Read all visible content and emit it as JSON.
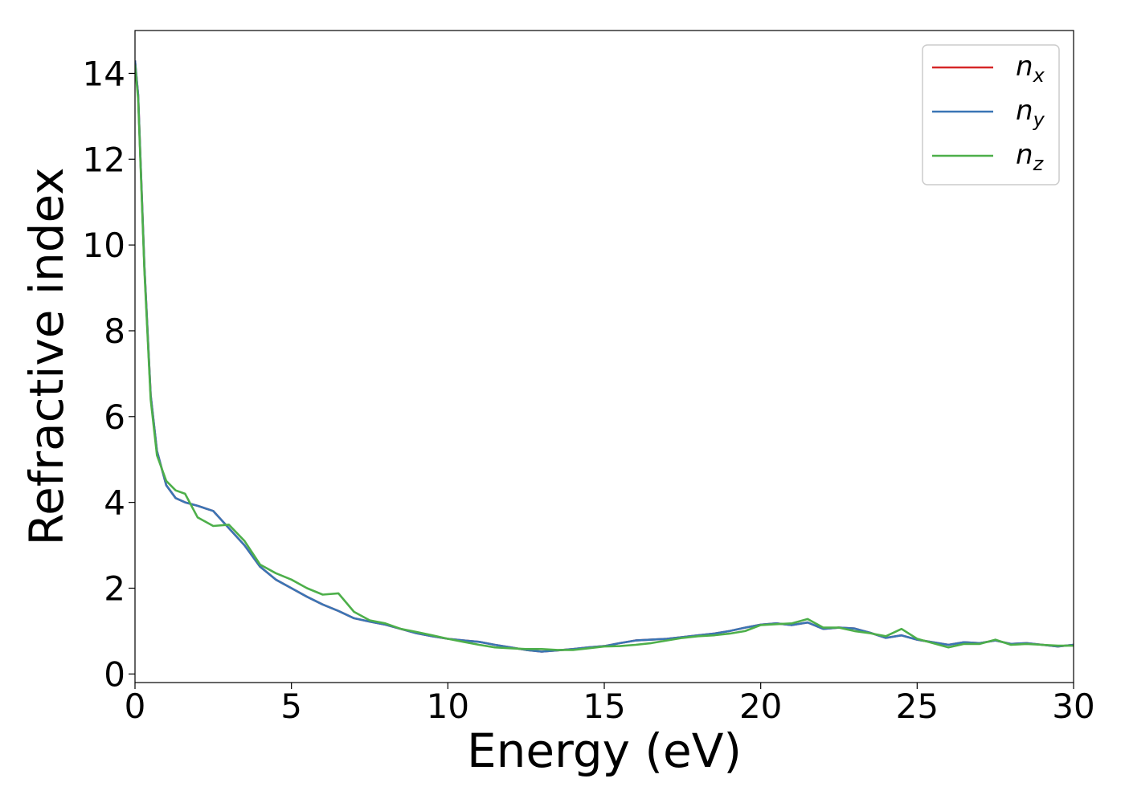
{
  "chart_data": {
    "type": "line",
    "xlabel": "Energy (eV)",
    "ylabel": "Refractive index",
    "xlim": [
      0,
      30
    ],
    "ylim": [
      -0.2,
      15
    ],
    "xticks": [
      0,
      5,
      10,
      15,
      20,
      25,
      30
    ],
    "yticks": [
      0,
      2,
      4,
      6,
      8,
      10,
      12,
      14
    ],
    "grid": false,
    "legend_position": "top-right",
    "colors": {
      "n_x": "#d62728",
      "n_y": "#3a75b5",
      "n_z": "#4daf4a"
    },
    "series": [
      {
        "name": "n_x",
        "legend_base": "n",
        "legend_sub": "x",
        "x": [
          0,
          0.1,
          0.3,
          0.5,
          0.7,
          1.0,
          1.3,
          1.6,
          2.0,
          2.5,
          3.0,
          3.5,
          4.0,
          4.5,
          5.0,
          5.5,
          6.0,
          6.5,
          7.0,
          7.5,
          8.0,
          8.5,
          9.0,
          9.5,
          10.0,
          10.5,
          11.0,
          11.5,
          12.0,
          12.5,
          13.0,
          13.5,
          14.0,
          14.5,
          15.0,
          15.5,
          16.0,
          16.5,
          17.0,
          17.5,
          18.0,
          18.5,
          19.0,
          19.5,
          20.0,
          20.5,
          21.0,
          21.5,
          22.0,
          22.5,
          23.0,
          23.5,
          24.0,
          24.5,
          25.0,
          25.5,
          26.0,
          26.5,
          27.0,
          27.5,
          28.0,
          28.5,
          29.0,
          29.5,
          30.0
        ],
        "y": [
          14.3,
          13.5,
          9.5,
          6.5,
          5.2,
          4.4,
          4.1,
          4.0,
          3.92,
          3.8,
          3.4,
          3.0,
          2.5,
          2.2,
          2.0,
          1.8,
          1.62,
          1.47,
          1.3,
          1.22,
          1.15,
          1.05,
          0.95,
          0.88,
          0.82,
          0.78,
          0.75,
          0.68,
          0.62,
          0.56,
          0.52,
          0.55,
          0.58,
          0.62,
          0.65,
          0.72,
          0.78,
          0.8,
          0.82,
          0.86,
          0.9,
          0.94,
          1.0,
          1.08,
          1.15,
          1.18,
          1.14,
          1.2,
          1.05,
          1.08,
          1.06,
          0.96,
          0.84,
          0.9,
          0.8,
          0.74,
          0.68,
          0.74,
          0.72,
          0.78,
          0.7,
          0.72,
          0.68,
          0.64,
          0.68
        ]
      },
      {
        "name": "n_y",
        "legend_base": "n",
        "legend_sub": "y",
        "x": [
          0,
          0.1,
          0.3,
          0.5,
          0.7,
          1.0,
          1.3,
          1.6,
          2.0,
          2.5,
          3.0,
          3.5,
          4.0,
          4.5,
          5.0,
          5.5,
          6.0,
          6.5,
          7.0,
          7.5,
          8.0,
          8.5,
          9.0,
          9.5,
          10.0,
          10.5,
          11.0,
          11.5,
          12.0,
          12.5,
          13.0,
          13.5,
          14.0,
          14.5,
          15.0,
          15.5,
          16.0,
          16.5,
          17.0,
          17.5,
          18.0,
          18.5,
          19.0,
          19.5,
          20.0,
          20.5,
          21.0,
          21.5,
          22.0,
          22.5,
          23.0,
          23.5,
          24.0,
          24.5,
          25.0,
          25.5,
          26.0,
          26.5,
          27.0,
          27.5,
          28.0,
          28.5,
          29.0,
          29.5,
          30.0
        ],
        "y": [
          14.3,
          13.5,
          9.5,
          6.5,
          5.2,
          4.4,
          4.1,
          4.0,
          3.92,
          3.8,
          3.4,
          3.0,
          2.5,
          2.2,
          2.0,
          1.8,
          1.62,
          1.47,
          1.3,
          1.22,
          1.15,
          1.05,
          0.95,
          0.88,
          0.82,
          0.78,
          0.75,
          0.68,
          0.62,
          0.56,
          0.52,
          0.55,
          0.58,
          0.62,
          0.65,
          0.72,
          0.78,
          0.8,
          0.82,
          0.86,
          0.9,
          0.94,
          1.0,
          1.08,
          1.15,
          1.18,
          1.14,
          1.2,
          1.05,
          1.08,
          1.06,
          0.96,
          0.84,
          0.9,
          0.8,
          0.74,
          0.68,
          0.74,
          0.72,
          0.78,
          0.7,
          0.72,
          0.68,
          0.64,
          0.68
        ]
      },
      {
        "name": "n_z",
        "legend_base": "n",
        "legend_sub": "z",
        "x": [
          0,
          0.1,
          0.3,
          0.5,
          0.7,
          1.0,
          1.3,
          1.6,
          2.0,
          2.5,
          3.0,
          3.5,
          4.0,
          4.5,
          5.0,
          5.5,
          6.0,
          6.5,
          7.0,
          7.5,
          8.0,
          8.5,
          9.0,
          9.5,
          10.0,
          10.5,
          11.0,
          11.5,
          12.0,
          12.5,
          13.0,
          13.5,
          14.0,
          14.5,
          15.0,
          15.5,
          16.0,
          16.5,
          17.0,
          17.5,
          18.0,
          18.5,
          19.0,
          19.5,
          20.0,
          20.5,
          21.0,
          21.5,
          22.0,
          22.5,
          23.0,
          23.5,
          24.0,
          24.5,
          25.0,
          25.5,
          26.0,
          26.5,
          27.0,
          27.5,
          28.0,
          28.5,
          29.0,
          29.5,
          30.0
        ],
        "y": [
          14.2,
          13.4,
          9.4,
          6.4,
          5.1,
          4.5,
          4.28,
          4.2,
          3.65,
          3.45,
          3.48,
          3.1,
          2.55,
          2.35,
          2.2,
          2.0,
          1.85,
          1.88,
          1.45,
          1.25,
          1.18,
          1.05,
          0.98,
          0.9,
          0.82,
          0.75,
          0.68,
          0.62,
          0.6,
          0.58,
          0.58,
          0.56,
          0.56,
          0.6,
          0.64,
          0.65,
          0.68,
          0.72,
          0.78,
          0.84,
          0.88,
          0.9,
          0.94,
          1.0,
          1.14,
          1.16,
          1.18,
          1.28,
          1.08,
          1.08,
          1.0,
          0.95,
          0.88,
          1.05,
          0.82,
          0.72,
          0.62,
          0.7,
          0.7,
          0.8,
          0.68,
          0.7,
          0.68,
          0.66,
          0.66
        ]
      }
    ]
  }
}
